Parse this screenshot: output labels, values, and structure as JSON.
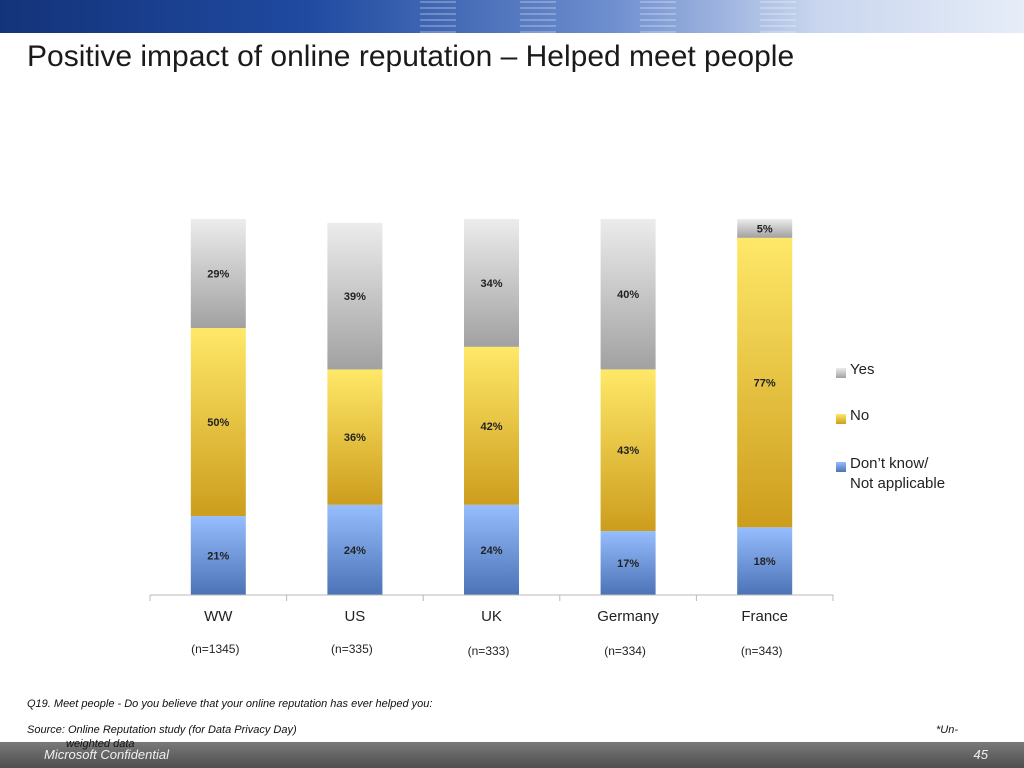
{
  "slide": {
    "title": "Positive impact of online reputation – Helped meet people",
    "question_note": "Q19. Meet people - Do you believe that your online reputation has ever helped you:",
    "source_note": "Source: Online Reputation study (for Data Privacy Day)",
    "unweighted_prefix": "*Un-",
    "unweighted_suffix": "weighted data",
    "footer_left": "Microsoft Confidential",
    "page_number": "45"
  },
  "chart_data": {
    "type": "bar",
    "stacked": true,
    "categories": [
      "WW",
      "US",
      "UK",
      "Germany",
      "France"
    ],
    "sample_sizes": [
      "(n=1345)",
      "(n=335)",
      "(n=333)",
      "(n=334)",
      "(n=343)"
    ],
    "series": [
      {
        "name": "Don’t know/ Not applicable",
        "color": "#6e96d8",
        "values": [
          21,
          24,
          24,
          17,
          18
        ]
      },
      {
        "name": "No",
        "color": "#f0c040",
        "values": [
          50,
          36,
          42,
          43,
          77
        ]
      },
      {
        "name": "Yes",
        "color": "#c4c4c4",
        "values": [
          29,
          39,
          34,
          40,
          5
        ]
      }
    ],
    "value_labels": [
      [
        "21%",
        "24%",
        "24%",
        "17%",
        "18%"
      ],
      [
        "50%",
        "36%",
        "42%",
        "43%",
        "77%"
      ],
      [
        "29%",
        "39%",
        "34%",
        "40%",
        "5%"
      ]
    ],
    "legend_order": [
      "Yes",
      "No",
      "Don’t know/ Not applicable"
    ],
    "legend_lines": [
      [
        "Yes"
      ],
      [
        "No"
      ],
      [
        "Don’t know/",
        "Not applicable"
      ]
    ],
    "legend_position": "right",
    "ylim": [
      0,
      100
    ],
    "grid": false
  }
}
